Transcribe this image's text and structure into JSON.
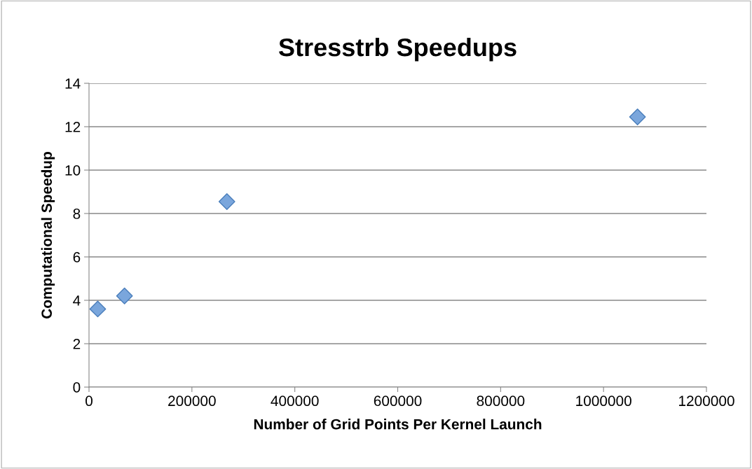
{
  "chart_data": {
    "type": "scatter",
    "title": "Stresstrb Speedups",
    "xlabel": "Number of Grid Points Per Kernel Launch",
    "ylabel": "Computational Speedup",
    "x": [
      17000,
      69000,
      268000,
      1066000
    ],
    "values": [
      3.6,
      4.2,
      8.55,
      12.45
    ],
    "color": "#7aa6dc",
    "marker": "diamond",
    "grid": "y",
    "legend": false,
    "xlim": [
      0,
      1200000
    ],
    "xticks": [
      0,
      200000,
      400000,
      600000,
      800000,
      1000000,
      1200000
    ],
    "ylim": [
      0,
      14
    ],
    "yticks": [
      0,
      2,
      4,
      6,
      8,
      10,
      12,
      14
    ]
  }
}
